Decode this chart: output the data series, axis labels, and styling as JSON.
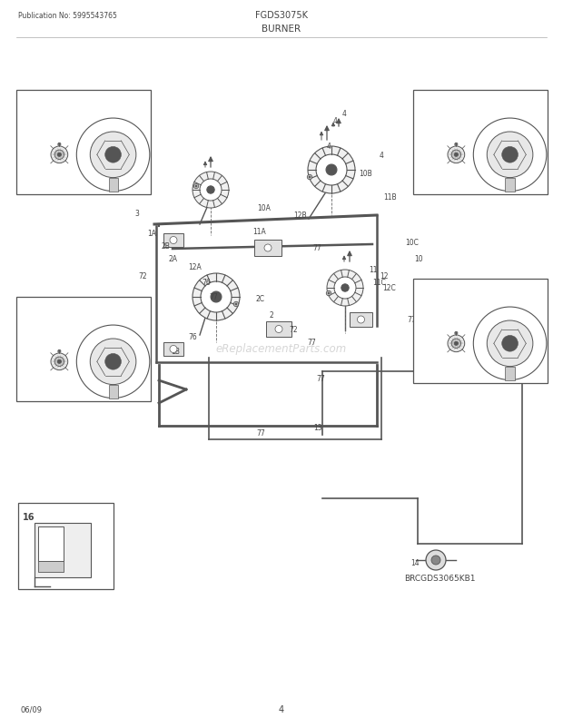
{
  "title_left": "Publication No: 5995543765",
  "title_center": "FGDS3075K",
  "subtitle": "BURNER",
  "footer_left": "06/09",
  "footer_center": "4",
  "bg_color": "#ffffff",
  "border_color": "#555555",
  "text_color": "#444444",
  "diagram_color": "#555555",
  "watermark": "eReplacementParts.com",
  "bottom_label": "BRCGDS3065KB1",
  "page_width": 6.2,
  "page_height": 8.03,
  "dpi": 100
}
